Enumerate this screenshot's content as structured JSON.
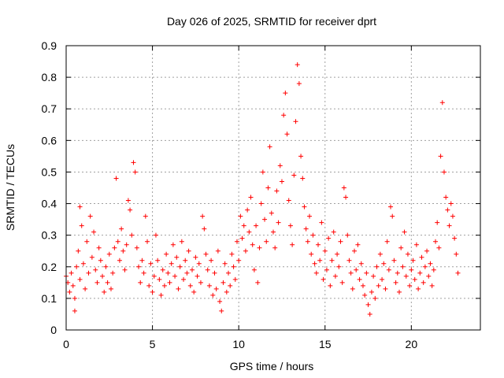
{
  "chart_data": {
    "type": "scatter",
    "title": "Day 026 of 2025, SRMTID for receiver dprt",
    "xlabel": "GPS time / hours",
    "ylabel": "SRMTID / TECUs",
    "xlim": [
      0,
      24
    ],
    "ylim": [
      0,
      0.9
    ],
    "xticks": [
      0,
      5,
      10,
      15,
      20
    ],
    "yticks": [
      0,
      0.1,
      0.2,
      0.3,
      0.4,
      0.5,
      0.6,
      0.7,
      0.8,
      0.9
    ],
    "grid": true,
    "marker": "+",
    "color": "#ff0000",
    "series": [
      {
        "name": "dprt",
        "points": [
          [
            0.0,
            0.17
          ],
          [
            0.1,
            0.15
          ],
          [
            0.2,
            0.12
          ],
          [
            0.3,
            0.18
          ],
          [
            0.4,
            0.14
          ],
          [
            0.5,
            0.1
          ],
          [
            0.5,
            0.06
          ],
          [
            0.6,
            0.2
          ],
          [
            0.7,
            0.25
          ],
          [
            0.8,
            0.16
          ],
          [
            0.8,
            0.39
          ],
          [
            0.9,
            0.33
          ],
          [
            1.0,
            0.21
          ],
          [
            1.1,
            0.13
          ],
          [
            1.2,
            0.28
          ],
          [
            1.3,
            0.18
          ],
          [
            1.4,
            0.36
          ],
          [
            1.5,
            0.23
          ],
          [
            1.6,
            0.31
          ],
          [
            1.7,
            0.19
          ],
          [
            1.8,
            0.15
          ],
          [
            1.9,
            0.26
          ],
          [
            2.0,
            0.22
          ],
          [
            2.1,
            0.17
          ],
          [
            2.2,
            0.12
          ],
          [
            2.3,
            0.2
          ],
          [
            2.4,
            0.15
          ],
          [
            2.5,
            0.24
          ],
          [
            2.6,
            0.13
          ],
          [
            2.7,
            0.18
          ],
          [
            2.8,
            0.26
          ],
          [
            2.9,
            0.48
          ],
          [
            3.0,
            0.28
          ],
          [
            3.1,
            0.22
          ],
          [
            3.2,
            0.32
          ],
          [
            3.3,
            0.25
          ],
          [
            3.4,
            0.19
          ],
          [
            3.5,
            0.27
          ],
          [
            3.6,
            0.41
          ],
          [
            3.7,
            0.38
          ],
          [
            3.8,
            0.3
          ],
          [
            3.9,
            0.53
          ],
          [
            4.0,
            0.5
          ],
          [
            4.1,
            0.26
          ],
          [
            4.2,
            0.2
          ],
          [
            4.3,
            0.15
          ],
          [
            4.4,
            0.22
          ],
          [
            4.5,
            0.18
          ],
          [
            4.6,
            0.36
          ],
          [
            4.7,
            0.28
          ],
          [
            4.8,
            0.14
          ],
          [
            4.9,
            0.21
          ],
          [
            5.0,
            0.12
          ],
          [
            5.1,
            0.17
          ],
          [
            5.2,
            0.3
          ],
          [
            5.3,
            0.22
          ],
          [
            5.4,
            0.16
          ],
          [
            5.5,
            0.11
          ],
          [
            5.6,
            0.19
          ],
          [
            5.7,
            0.14
          ],
          [
            5.8,
            0.24
          ],
          [
            5.9,
            0.18
          ],
          [
            6.0,
            0.15
          ],
          [
            6.1,
            0.21
          ],
          [
            6.2,
            0.27
          ],
          [
            6.3,
            0.17
          ],
          [
            6.4,
            0.23
          ],
          [
            6.5,
            0.13
          ],
          [
            6.6,
            0.2
          ],
          [
            6.7,
            0.28
          ],
          [
            6.8,
            0.16
          ],
          [
            6.9,
            0.22
          ],
          [
            7.0,
            0.18
          ],
          [
            7.1,
            0.25
          ],
          [
            7.2,
            0.14
          ],
          [
            7.3,
            0.19
          ],
          [
            7.4,
            0.12
          ],
          [
            7.5,
            0.23
          ],
          [
            7.6,
            0.17
          ],
          [
            7.7,
            0.21
          ],
          [
            7.8,
            0.15
          ],
          [
            7.9,
            0.36
          ],
          [
            8.0,
            0.32
          ],
          [
            8.1,
            0.24
          ],
          [
            8.2,
            0.19
          ],
          [
            8.3,
            0.14
          ],
          [
            8.4,
            0.22
          ],
          [
            8.5,
            0.11
          ],
          [
            8.6,
            0.18
          ],
          [
            8.7,
            0.13
          ],
          [
            8.8,
            0.25
          ],
          [
            8.9,
            0.09
          ],
          [
            9.0,
            0.06
          ],
          [
            9.1,
            0.15
          ],
          [
            9.2,
            0.21
          ],
          [
            9.3,
            0.12
          ],
          [
            9.4,
            0.18
          ],
          [
            9.5,
            0.14
          ],
          [
            9.6,
            0.24
          ],
          [
            9.7,
            0.2
          ],
          [
            9.8,
            0.16
          ],
          [
            9.9,
            0.28
          ],
          [
            10.0,
            0.22
          ],
          [
            10.1,
            0.36
          ],
          [
            10.2,
            0.29
          ],
          [
            10.3,
            0.33
          ],
          [
            10.4,
            0.25
          ],
          [
            10.5,
            0.38
          ],
          [
            10.6,
            0.31
          ],
          [
            10.7,
            0.42
          ],
          [
            10.8,
            0.27
          ],
          [
            10.9,
            0.19
          ],
          [
            11.0,
            0.33
          ],
          [
            11.1,
            0.15
          ],
          [
            11.2,
            0.26
          ],
          [
            11.3,
            0.4
          ],
          [
            11.4,
            0.5
          ],
          [
            11.5,
            0.35
          ],
          [
            11.6,
            0.28
          ],
          [
            11.7,
            0.45
          ],
          [
            11.8,
            0.58
          ],
          [
            11.9,
            0.37
          ],
          [
            12.0,
            0.31
          ],
          [
            12.1,
            0.26
          ],
          [
            12.2,
            0.44
          ],
          [
            12.3,
            0.34
          ],
          [
            12.4,
            0.52
          ],
          [
            12.5,
            0.47
          ],
          [
            12.6,
            0.68
          ],
          [
            12.7,
            0.75
          ],
          [
            12.8,
            0.62
          ],
          [
            12.9,
            0.41
          ],
          [
            13.0,
            0.33
          ],
          [
            13.1,
            0.27
          ],
          [
            13.2,
            0.49
          ],
          [
            13.3,
            0.66
          ],
          [
            13.4,
            0.84
          ],
          [
            13.5,
            0.78
          ],
          [
            13.6,
            0.55
          ],
          [
            13.7,
            0.48
          ],
          [
            13.8,
            0.39
          ],
          [
            13.9,
            0.32
          ],
          [
            14.0,
            0.28
          ],
          [
            14.1,
            0.36
          ],
          [
            14.2,
            0.24
          ],
          [
            14.3,
            0.3
          ],
          [
            14.4,
            0.21
          ],
          [
            14.5,
            0.18
          ],
          [
            14.6,
            0.27
          ],
          [
            14.7,
            0.22
          ],
          [
            14.8,
            0.34
          ],
          [
            14.9,
            0.16
          ],
          [
            15.0,
            0.25
          ],
          [
            15.1,
            0.19
          ],
          [
            15.2,
            0.29
          ],
          [
            15.3,
            0.14
          ],
          [
            15.4,
            0.22
          ],
          [
            15.5,
            0.31
          ],
          [
            15.6,
            0.17
          ],
          [
            15.7,
            0.24
          ],
          [
            15.8,
            0.2
          ],
          [
            15.9,
            0.28
          ],
          [
            16.0,
            0.15
          ],
          [
            16.1,
            0.45
          ],
          [
            16.2,
            0.42
          ],
          [
            16.3,
            0.3
          ],
          [
            16.4,
            0.22
          ],
          [
            16.5,
            0.18
          ],
          [
            16.6,
            0.13
          ],
          [
            16.7,
            0.25
          ],
          [
            16.8,
            0.19
          ],
          [
            16.9,
            0.27
          ],
          [
            17.0,
            0.16
          ],
          [
            17.1,
            0.21
          ],
          [
            17.2,
            0.14
          ],
          [
            17.3,
            0.11
          ],
          [
            17.4,
            0.18
          ],
          [
            17.5,
            0.08
          ],
          [
            17.6,
            0.05
          ],
          [
            17.7,
            0.12
          ],
          [
            17.8,
            0.17
          ],
          [
            17.9,
            0.1
          ],
          [
            18.0,
            0.2
          ],
          [
            18.1,
            0.14
          ],
          [
            18.2,
            0.24
          ],
          [
            18.3,
            0.16
          ],
          [
            18.4,
            0.21
          ],
          [
            18.5,
            0.13
          ],
          [
            18.6,
            0.28
          ],
          [
            18.7,
            0.19
          ],
          [
            18.8,
            0.39
          ],
          [
            18.9,
            0.36
          ],
          [
            19.0,
            0.22
          ],
          [
            19.1,
            0.15
          ],
          [
            19.2,
            0.18
          ],
          [
            19.3,
            0.12
          ],
          [
            19.4,
            0.26
          ],
          [
            19.5,
            0.2
          ],
          [
            19.6,
            0.31
          ],
          [
            19.7,
            0.17
          ],
          [
            19.8,
            0.24
          ],
          [
            19.9,
            0.14
          ],
          [
            20.0,
            0.19
          ],
          [
            20.1,
            0.22
          ],
          [
            20.2,
            0.16
          ],
          [
            20.3,
            0.27
          ],
          [
            20.4,
            0.13
          ],
          [
            20.5,
            0.18
          ],
          [
            20.6,
            0.23
          ],
          [
            20.7,
            0.15
          ],
          [
            20.8,
            0.2
          ],
          [
            20.9,
            0.25
          ],
          [
            21.0,
            0.17
          ],
          [
            21.1,
            0.21
          ],
          [
            21.2,
            0.14
          ],
          [
            21.3,
            0.19
          ],
          [
            21.4,
            0.28
          ],
          [
            21.5,
            0.34
          ],
          [
            21.6,
            0.26
          ],
          [
            21.7,
            0.55
          ],
          [
            21.8,
            0.72
          ],
          [
            21.9,
            0.5
          ],
          [
            22.0,
            0.42
          ],
          [
            22.1,
            0.38
          ],
          [
            22.2,
            0.33
          ],
          [
            22.3,
            0.4
          ],
          [
            22.4,
            0.36
          ],
          [
            22.5,
            0.29
          ],
          [
            22.6,
            0.24
          ],
          [
            22.7,
            0.18
          ]
        ]
      }
    ]
  }
}
